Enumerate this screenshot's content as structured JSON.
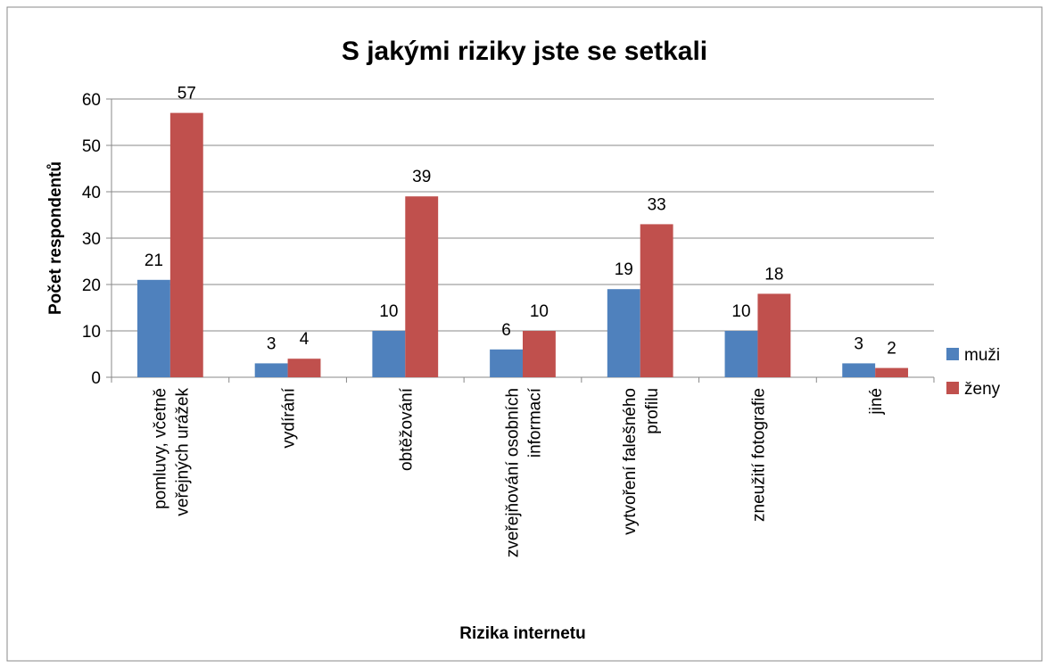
{
  "chart_data": {
    "type": "bar",
    "title": "S jakými riziky jste se setkali",
    "y_label": "Počet respondentů",
    "x_label": "Rizika internetu",
    "categories": [
      "pomluvy, včetně veřejných urážek",
      "vydírání",
      "obtěžování",
      "zveřejňování osobních informací",
      "vytvoření falešného profilu",
      "zneužití fotografie",
      "jiné"
    ],
    "series": [
      {
        "name": "muži",
        "color": "#4f81bd",
        "values": [
          21,
          3,
          10,
          6,
          19,
          10,
          3
        ]
      },
      {
        "name": "ženy",
        "color": "#c0504d",
        "values": [
          57,
          4,
          39,
          10,
          33,
          18,
          2
        ]
      }
    ],
    "ylim": [
      0,
      60
    ],
    "yticks": [
      0,
      10,
      20,
      30,
      40,
      50,
      60
    ],
    "grid": true,
    "legend": "right",
    "data_labels": true
  }
}
